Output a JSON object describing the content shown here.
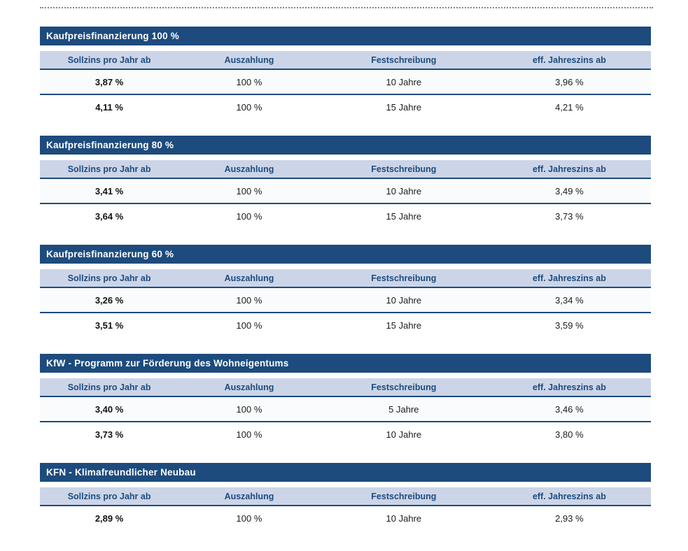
{
  "colors": {
    "title_bar_bg": "#1d4b7d",
    "title_bar_text": "#ffffff",
    "column_header_bg": "#ccd5e8",
    "column_header_text": "#1d4b7d",
    "rule_line": "#1d4b7d",
    "dotted_divider": "#74879c",
    "cell_text": "#1b1b1b",
    "page_bg": "#ffffff"
  },
  "columns": [
    "Sollzins pro Jahr ab",
    "Auszahlung",
    "Festschreibung",
    "eff. Jahreszins ab"
  ],
  "tables": [
    {
      "title": "Kaufpreisfinanzierung 100 %",
      "rows": [
        [
          "3,87 %",
          "100 %",
          "10 Jahre",
          "3,96 %"
        ],
        [
          "4,11 %",
          "100 %",
          "15 Jahre",
          "4,21 %"
        ]
      ]
    },
    {
      "title": "Kaufpreisfinanzierung 80 %",
      "rows": [
        [
          "3,41 %",
          "100 %",
          "10 Jahre",
          "3,49 %"
        ],
        [
          "3,64 %",
          "100 %",
          "15 Jahre",
          "3,73 %"
        ]
      ]
    },
    {
      "title": "Kaufpreisfinanzierung 60 %",
      "rows": [
        [
          "3,26 %",
          "100 %",
          "10 Jahre",
          "3,34 %"
        ],
        [
          "3,51 %",
          "100 %",
          "15 Jahre",
          "3,59 %"
        ]
      ]
    },
    {
      "title": "KfW - Programm zur Förderung des Wohneigentums",
      "rows": [
        [
          "3,40 %",
          "100 %",
          "5 Jahre",
          "3,46 %"
        ],
        [
          "3,73 %",
          "100 %",
          "10 Jahre",
          "3,80 %"
        ]
      ]
    },
    {
      "title": "KFN - Klimafreundlicher Neubau",
      "rows": [
        [
          "2,89 %",
          "100 %",
          "10 Jahre",
          "2,93 %"
        ]
      ]
    }
  ]
}
